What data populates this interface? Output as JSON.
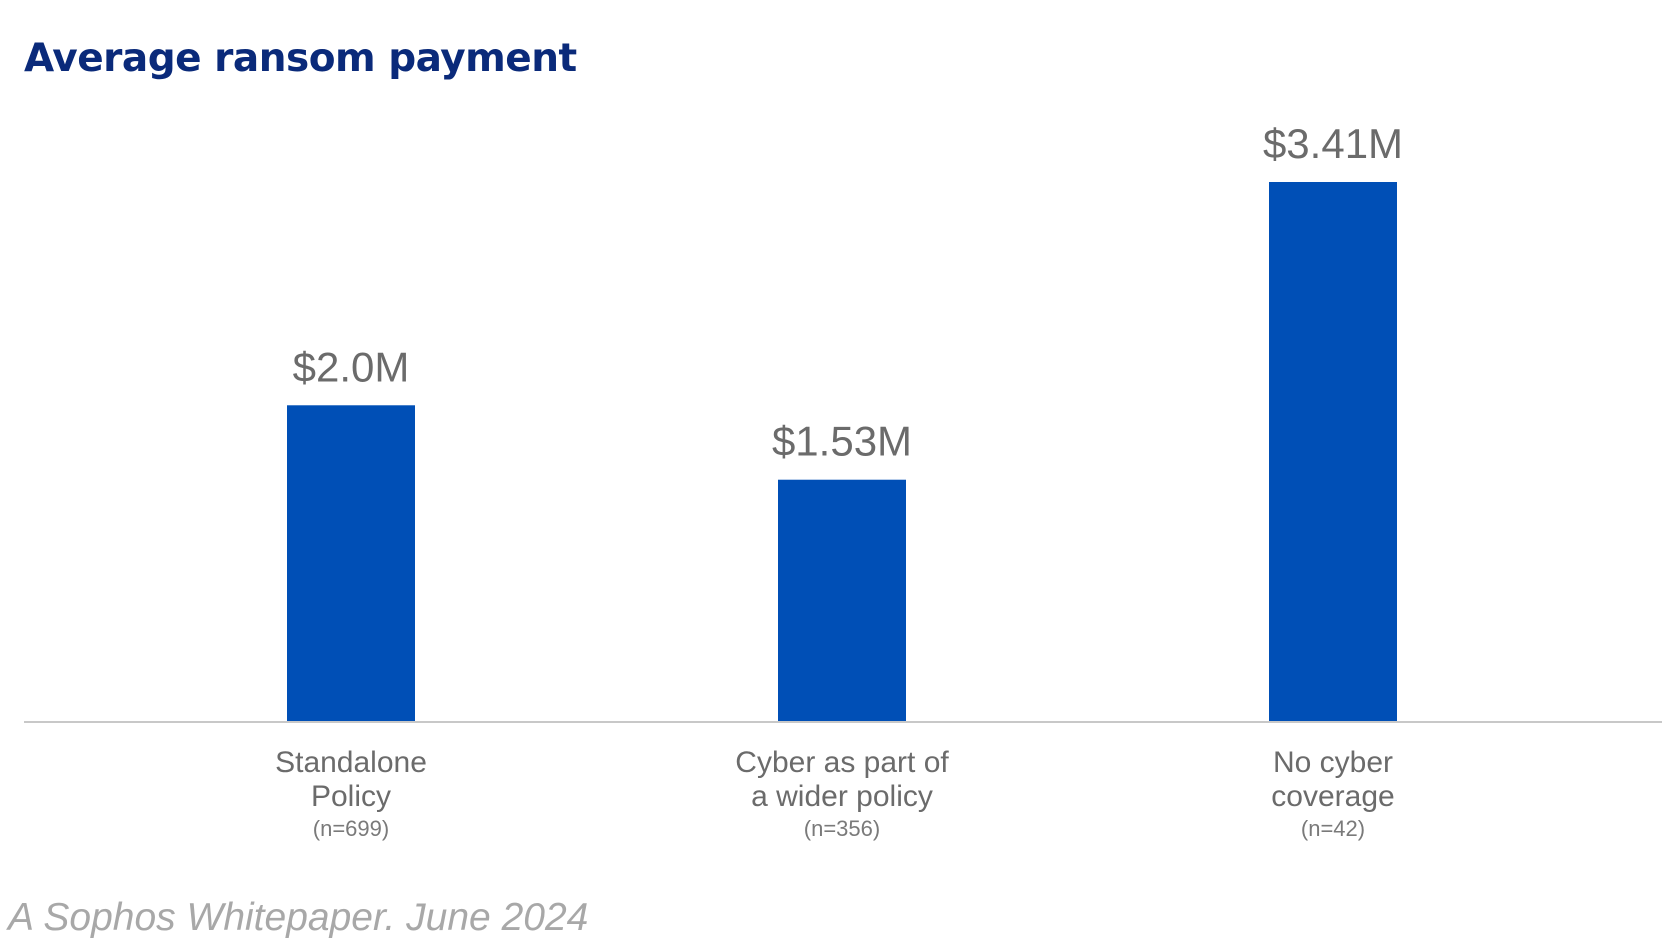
{
  "chart_data": {
    "type": "bar",
    "title": "Average ransom payment",
    "categories": [
      {
        "lines": [
          "Standalone",
          "Policy"
        ],
        "n": "(n=699)"
      },
      {
        "lines": [
          "Cyber as part of",
          "a wider policy"
        ],
        "n": "(n=356)"
      },
      {
        "lines": [
          "No cyber",
          "coverage"
        ],
        "n": "(n=42)"
      }
    ],
    "values": [
      2.0,
      1.53,
      3.41
    ],
    "value_labels": [
      "$2.0M",
      "$1.53M",
      "$3.41M"
    ],
    "unit": "$M",
    "ylim": [
      0,
      3.41
    ],
    "bar_color": "#004fb6",
    "axis_color": "#c8c8c8",
    "grid": false
  },
  "footer": "A Sophos Whitepaper. June 2024"
}
